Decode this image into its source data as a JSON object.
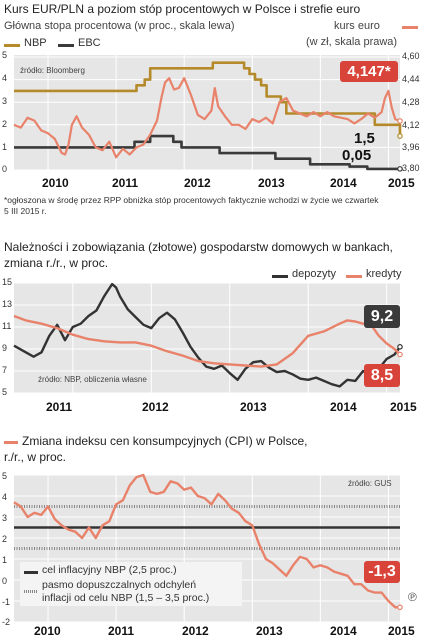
{
  "colors": {
    "nbp": "#b48a2a",
    "ebc": "#3a3a3a",
    "orange": "#e8826a",
    "dep": "#333333",
    "red": "#d9443a",
    "band": "#888888",
    "plot_bg": "#e6e6e6"
  },
  "years": [
    "2010",
    "2011",
    "2012",
    "2013",
    "2014",
    "2015"
  ],
  "panel1": {
    "title": "Kurs EUR/PLN a poziom stóp procentowych w Polsce i strefie euro",
    "subtitle": "Główna stopa procentowa (w proc., skala lewa)",
    "legend_nbp": "NBP",
    "legend_ebc": "EBC",
    "right_title": "kurs euro",
    "right_subtitle": "(w zł, skala prawa)",
    "source": "źródło: Bloomberg",
    "left_ticks": [
      "5",
      "4",
      "3",
      "2",
      "1",
      "0"
    ],
    "right_ticks": [
      "4,60",
      "4,44",
      "4,28",
      "4,12",
      "3,96",
      "3,80"
    ],
    "label_eur": "4,147*",
    "label_nbp": "1,5",
    "label_ebc": "0,05",
    "note": "*ogłoszona w środę przez RPP obniżka stóp procentowych faktycznie wchodzi w życie we czwartek 5 III 2015 r."
  },
  "panel2": {
    "title": "Należności i zobowiązania (złotowe) gospodarstw domowych w bankach,",
    "title2": "zmiana r./r., w proc.",
    "legend_dep": "depozyty",
    "legend_kred": "kredyty",
    "source": "źródło: NBP, obliczenia własne",
    "ticks": [
      "15",
      "13",
      "11",
      "9",
      "7",
      "5"
    ],
    "label_dep": "9,2",
    "label_kred": "8,5"
  },
  "panel3": {
    "title": "Zmiana indeksu cen konsumpcyjnych (CPI) w Polsce,",
    "title2": "r./r., w proc.",
    "source": "źródło: GUS",
    "ticks": [
      "5",
      "4",
      "3",
      "2",
      "1",
      "0",
      "-1",
      "-2"
    ],
    "legend_target": "cel inflacyjny NBP (2,5 proc.)",
    "legend_band1": "pasmo dopuszczalnych odchyleń",
    "legend_band2": "inflacji od celu NBP (1,5 – 3,5 proc.)",
    "label_cpi": "-1,3",
    "credit": "℗"
  },
  "chart_data": [
    {
      "type": "line",
      "title": "Kurs EUR/PLN a poziom stóp procentowych w Polsce i strefie euro",
      "x_range": [
        2009.5,
        2015.17
      ],
      "y_left_range": [
        0,
        5
      ],
      "y_right_range": [
        3.8,
        4.6
      ],
      "grid": true,
      "series": [
        {
          "name": "NBP",
          "axis": "left",
          "step": true,
          "x": [
            2009.5,
            2011.05,
            2011.3,
            2011.42,
            2011.5,
            2012.42,
            2012.88,
            2012.96,
            2013.04,
            2013.13,
            2013.21,
            2013.42,
            2013.5,
            2014.75,
            2014.8,
            2015.16,
            2015.17
          ],
          "y": [
            3.5,
            3.5,
            3.75,
            4.0,
            4.5,
            4.75,
            4.5,
            4.25,
            4.0,
            3.75,
            3.25,
            3.0,
            2.5,
            2.5,
            2.0,
            2.0,
            1.5
          ]
        },
        {
          "name": "EBC",
          "axis": "left",
          "step": true,
          "x": [
            2009.5,
            2011.27,
            2011.5,
            2011.84,
            2011.96,
            2012.52,
            2013.34,
            2013.85,
            2014.43,
            2014.69,
            2015.17
          ],
          "y": [
            1.0,
            1.25,
            1.5,
            1.25,
            1.0,
            0.75,
            0.5,
            0.25,
            0.15,
            0.05,
            0.05
          ]
        },
        {
          "name": "kurs euro",
          "axis": "right",
          "x": [
            2009.5,
            2009.6,
            2009.7,
            2009.8,
            2009.9,
            2010.0,
            2010.1,
            2010.2,
            2010.25,
            2010.3,
            2010.35,
            2010.42,
            2010.5,
            2010.6,
            2010.7,
            2010.8,
            2010.9,
            2011.0,
            2011.1,
            2011.2,
            2011.3,
            2011.4,
            2011.5,
            2011.6,
            2011.67,
            2011.72,
            2011.78,
            2011.85,
            2011.92,
            2012.0,
            2012.1,
            2012.2,
            2012.3,
            2012.4,
            2012.45,
            2012.5,
            2012.6,
            2012.7,
            2012.8,
            2012.9,
            2013.0,
            2013.1,
            2013.2,
            2013.3,
            2013.4,
            2013.5,
            2013.6,
            2013.7,
            2013.8,
            2013.9,
            2014.0,
            2014.1,
            2014.2,
            2014.3,
            2014.4,
            2014.5,
            2014.6,
            2014.7,
            2014.8,
            2014.9,
            2014.95,
            2015.0,
            2015.05,
            2015.1,
            2015.17
          ],
          "y": [
            4.12,
            4.1,
            4.17,
            4.15,
            4.08,
            4.06,
            4.02,
            3.92,
            3.91,
            3.98,
            4.12,
            4.18,
            4.1,
            4.05,
            3.96,
            3.94,
            4.0,
            3.89,
            3.95,
            3.91,
            3.96,
            3.98,
            4.05,
            4.15,
            4.32,
            4.42,
            4.45,
            4.37,
            4.38,
            4.45,
            4.33,
            4.19,
            4.16,
            4.22,
            4.38,
            4.25,
            4.18,
            4.12,
            4.12,
            4.09,
            4.16,
            4.14,
            4.17,
            4.13,
            4.28,
            4.31,
            4.22,
            4.2,
            4.18,
            4.21,
            4.18,
            4.21,
            4.18,
            4.17,
            4.16,
            4.13,
            4.16,
            4.2,
            4.17,
            4.21,
            4.31,
            4.36,
            4.24,
            4.16,
            4.147
          ]
        }
      ]
    },
    {
      "type": "line",
      "title": "Należności i zobowiązania (złotowe) gospodarstw domowych w bankach, zmiana r./r., w proc.",
      "x_range": [
        2010.25,
        2015.17
      ],
      "y_range": [
        5,
        15
      ],
      "grid": true,
      "series": [
        {
          "name": "depozyty",
          "x": [
            2010.25,
            2010.4,
            2010.5,
            2010.6,
            2010.7,
            2010.8,
            2010.9,
            2011.0,
            2011.1,
            2011.2,
            2011.3,
            2011.4,
            2011.5,
            2011.55,
            2011.6,
            2011.7,
            2011.8,
            2011.9,
            2012.0,
            2012.1,
            2012.2,
            2012.3,
            2012.4,
            2012.5,
            2012.6,
            2012.7,
            2012.8,
            2012.9,
            2013.0,
            2013.1,
            2013.2,
            2013.3,
            2013.4,
            2013.5,
            2013.6,
            2013.7,
            2013.8,
            2013.9,
            2014.0,
            2014.1,
            2014.2,
            2014.3,
            2014.4,
            2014.5,
            2014.6,
            2014.7,
            2014.8,
            2014.9,
            2015.0,
            2015.1,
            2015.17
          ],
          "y": [
            9.3,
            8.7,
            8.3,
            8.7,
            10.2,
            11.2,
            9.8,
            11.0,
            11.3,
            12.0,
            12.5,
            13.8,
            14.9,
            14.6,
            13.8,
            12.6,
            11.9,
            11.2,
            10.9,
            11.8,
            12.3,
            11.7,
            10.5,
            9.2,
            8.2,
            7.4,
            7.2,
            7.5,
            6.8,
            6.2,
            7.2,
            7.8,
            7.9,
            7.3,
            6.9,
            7.0,
            6.7,
            6.3,
            6.2,
            6.4,
            6.1,
            5.8,
            5.6,
            6.2,
            6.1,
            7.0,
            6.5,
            7.2,
            8.1,
            8.5,
            9.2
          ]
        },
        {
          "name": "kredyty",
          "x": [
            2010.25,
            2010.4,
            2010.6,
            2010.8,
            2011.0,
            2011.2,
            2011.4,
            2011.6,
            2011.8,
            2012.0,
            2012.2,
            2012.4,
            2012.6,
            2012.8,
            2013.0,
            2013.2,
            2013.4,
            2013.6,
            2013.8,
            2014.0,
            2014.2,
            2014.4,
            2014.5,
            2014.6,
            2014.7,
            2014.8,
            2014.9,
            2015.0,
            2015.1,
            2015.17
          ],
          "y": [
            12.0,
            11.6,
            11.3,
            10.9,
            10.3,
            9.9,
            9.7,
            9.6,
            9.6,
            9.3,
            8.8,
            8.4,
            7.9,
            7.7,
            7.6,
            7.5,
            7.4,
            7.6,
            8.6,
            10.2,
            10.6,
            11.3,
            11.6,
            11.5,
            11.3,
            11.2,
            10.2,
            9.5,
            9.0,
            8.5
          ]
        }
      ]
    },
    {
      "type": "line",
      "title": "Zmiana indeksu cen konsumpcyjnych (CPI) w Polsce, r./r., w proc.",
      "x_range": [
        2009.5,
        2015.17
      ],
      "y_range": [
        -2,
        5
      ],
      "grid": true,
      "target": 2.5,
      "band": [
        1.5,
        3.5
      ],
      "series": [
        {
          "name": "CPI",
          "x": [
            2009.5,
            2009.6,
            2009.7,
            2009.8,
            2009.9,
            2010.0,
            2010.1,
            2010.2,
            2010.3,
            2010.4,
            2010.5,
            2010.6,
            2010.7,
            2010.8,
            2010.9,
            2011.0,
            2011.1,
            2011.2,
            2011.3,
            2011.4,
            2011.5,
            2011.6,
            2011.7,
            2011.8,
            2011.9,
            2012.0,
            2012.1,
            2012.2,
            2012.3,
            2012.4,
            2012.5,
            2012.6,
            2012.7,
            2012.8,
            2012.9,
            2013.0,
            2013.1,
            2013.2,
            2013.3,
            2013.4,
            2013.5,
            2013.6,
            2013.7,
            2013.8,
            2013.9,
            2014.0,
            2014.1,
            2014.2,
            2014.3,
            2014.4,
            2014.5,
            2014.6,
            2014.7,
            2014.8,
            2014.9,
            2015.0,
            2015.1,
            2015.17
          ],
          "y": [
            3.7,
            3.5,
            3.0,
            3.2,
            3.1,
            3.5,
            2.9,
            2.6,
            2.4,
            2.3,
            2.0,
            2.5,
            2.0,
            2.6,
            2.8,
            3.6,
            3.8,
            4.5,
            4.9,
            5.0,
            4.2,
            4.1,
            4.2,
            4.7,
            4.6,
            4.3,
            4.4,
            4.0,
            3.9,
            3.6,
            4.1,
            3.8,
            3.4,
            3.2,
            2.8,
            2.6,
            1.7,
            1.0,
            0.8,
            0.5,
            0.2,
            0.7,
            1.1,
            1.0,
            0.6,
            0.7,
            0.6,
            0.4,
            0.3,
            0.2,
            -0.2,
            -0.2,
            -0.5,
            -0.6,
            -0.6,
            -1.0,
            -1.3,
            -1.3
          ]
        }
      ]
    }
  ]
}
